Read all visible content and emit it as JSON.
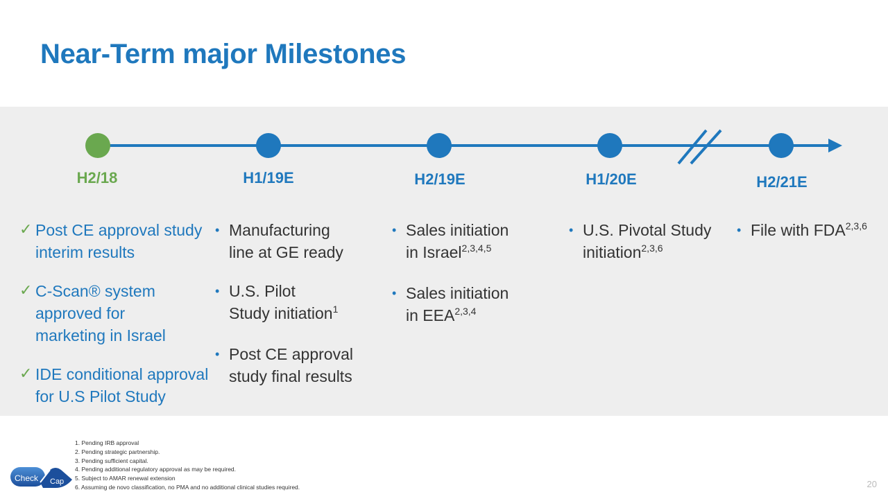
{
  "title": "Near-Term major Milestones",
  "colors": {
    "accent_blue": "#1f78bd",
    "done_green": "#6aa84f",
    "band_gray": "#eeeeee"
  },
  "timeline": {
    "periods": [
      {
        "label": "H2/18",
        "status": "done"
      },
      {
        "label": "H1/19E",
        "status": "planned"
      },
      {
        "label": "H2/19E",
        "status": "planned"
      },
      {
        "label": "H1/20E",
        "status": "planned"
      },
      {
        "label": "H2/21E",
        "status": "planned"
      }
    ]
  },
  "milestones": {
    "h2_18": [
      {
        "line1": "Post CE approval study",
        "line2": "interim results"
      },
      {
        "line1": "C-Scan® system",
        "line2": "approved for",
        "line3": "marketing in Israel"
      },
      {
        "line1": "IDE conditional approval",
        "line2": "for U.S Pilot Study"
      }
    ],
    "h1_19": [
      {
        "line1": "Manufacturing",
        "line2": "line at GE ready"
      },
      {
        "line1": "U.S. Pilot",
        "line2": "Study initiation",
        "sup": "1"
      },
      {
        "line1": "Post CE approval",
        "line2": "study final results"
      }
    ],
    "h2_19": [
      {
        "line1": "Sales initiation",
        "line2": "in Israel",
        "sup": "2,3,4,5"
      },
      {
        "line1": "Sales initiation",
        "line2": "in EEA",
        "sup": "2,3,4"
      }
    ],
    "h1_20": [
      {
        "line1": "U.S. Pivotal Study",
        "line2": "initiation",
        "sup": "2,3,6"
      }
    ],
    "h2_21": [
      {
        "line1": "File with FDA",
        "sup": "2,3,6"
      }
    ]
  },
  "footnotes": [
    "1. Pending IRB approval",
    "2. Pending strategic partnership.",
    "3. Pending sufficient capital.",
    "4. Pending additional regulatory approval as may be required.",
    "5. Subject to AMAR renewal extension",
    "6. Assuming de novo classification, no PMA and no additional clinical studies required."
  ],
  "logo": {
    "word1": "Check",
    "word2": "Cap"
  },
  "page_number": "20"
}
